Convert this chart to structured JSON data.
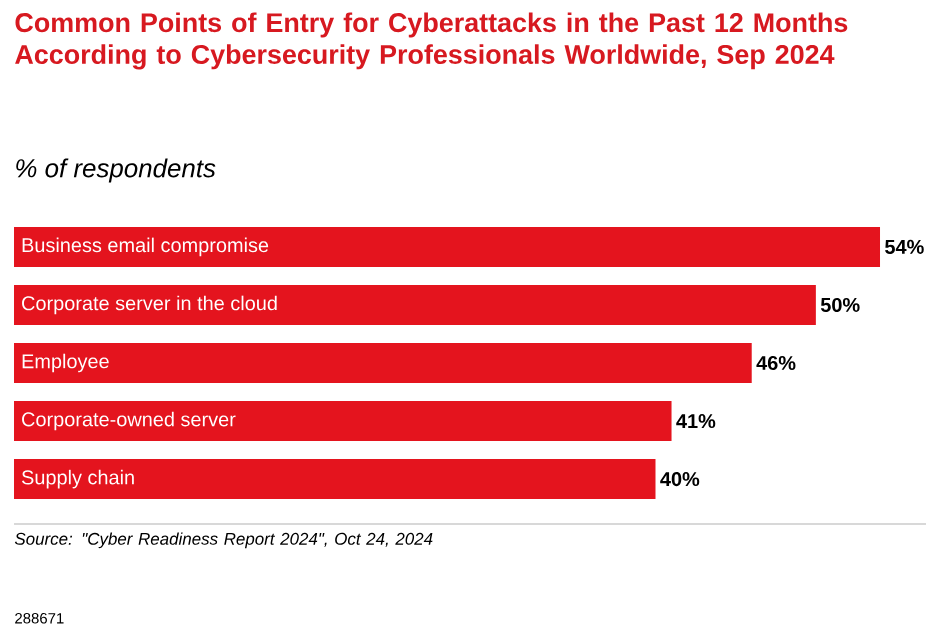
{
  "chart_data": {
    "type": "bar",
    "orientation": "horizontal",
    "title": "Common Points of Entry for Cyberattacks in the Past 12 Months According to Cybersecurity Professionals Worldwide, Sep 2024",
    "subtitle": "% of respondents",
    "categories": [
      "Business email compromise",
      "Corporate server in the cloud",
      "Employee",
      "Corporate-owned server",
      "Supply chain"
    ],
    "values": [
      54,
      50,
      46,
      41,
      40
    ],
    "value_labels": [
      "54%",
      "50%",
      "46%",
      "41%",
      "40%"
    ],
    "color": "#e4141e",
    "annotations": [
      "Source: \"Cyber Readiness Report 2024\", Oct 24, 2024",
      "288671"
    ]
  }
}
